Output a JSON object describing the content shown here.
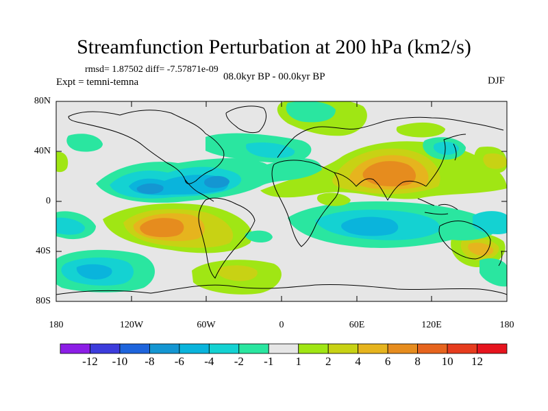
{
  "title": "Streamfunction Perturbation at 200 hPa (km2/s)",
  "stats": "rmsd= 1.87502 diff= -7.57871e-09",
  "experiment": "Expt = temni-temna",
  "period": "08.0kyr BP - 00.0kyr BP",
  "season": "DJF",
  "lat_labels": [
    "80N",
    "40N",
    "0",
    "40S",
    "80S"
  ],
  "lon_labels": [
    "180",
    "120W",
    "60W",
    "0",
    "60E",
    "120E",
    "180"
  ],
  "colorbar": {
    "labels": [
      "-12",
      "-10",
      "-8",
      "-6",
      "-4",
      "-2",
      "-1",
      "1",
      "2",
      "4",
      "6",
      "8",
      "10",
      "12"
    ],
    "colors": [
      "#8c1ee6",
      "#3c3cdc",
      "#1e64dc",
      "#1496d2",
      "#0ab4dc",
      "#14d2d2",
      "#2ae6a0",
      "#e6e6e6",
      "#a0e614",
      "#c8d214",
      "#e6b41e",
      "#e68c1e",
      "#e6641e",
      "#e63c1e",
      "#e6141e"
    ]
  },
  "chart_data": {
    "type": "contour-map",
    "variable": "Streamfunction Perturbation at 200 hPa",
    "units": "km2/s",
    "lon_range": [
      -180,
      180
    ],
    "lat_range": [
      -90,
      90
    ],
    "levels": [
      -12,
      -10,
      -8,
      -6,
      -4,
      -2,
      -1,
      1,
      2,
      4,
      6,
      8,
      10,
      12
    ],
    "features": [
      {
        "name": "south-asia-high",
        "lon": 85,
        "lat": 25,
        "value": 7
      },
      {
        "name": "south-pacific-high",
        "lon": -100,
        "lat": -20,
        "value": 6
      },
      {
        "name": "south-america-high",
        "lon": -60,
        "lat": -25,
        "value": 4
      },
      {
        "name": "north-pacific-low",
        "lon": -110,
        "lat": 15,
        "value": -4
      },
      {
        "name": "caribbean-low",
        "lon": -55,
        "lat": 20,
        "value": -5
      },
      {
        "name": "indian-ocean-low",
        "lon": 60,
        "lat": -20,
        "value": -4
      },
      {
        "name": "southwest-pacific-low",
        "lon": -150,
        "lat": -55,
        "value": -4
      },
      {
        "name": "south-atlantic-high",
        "lon": -35,
        "lat": -55,
        "value": 3
      },
      {
        "name": "australia-high",
        "lon": 150,
        "lat": -35,
        "value": 5
      }
    ]
  }
}
